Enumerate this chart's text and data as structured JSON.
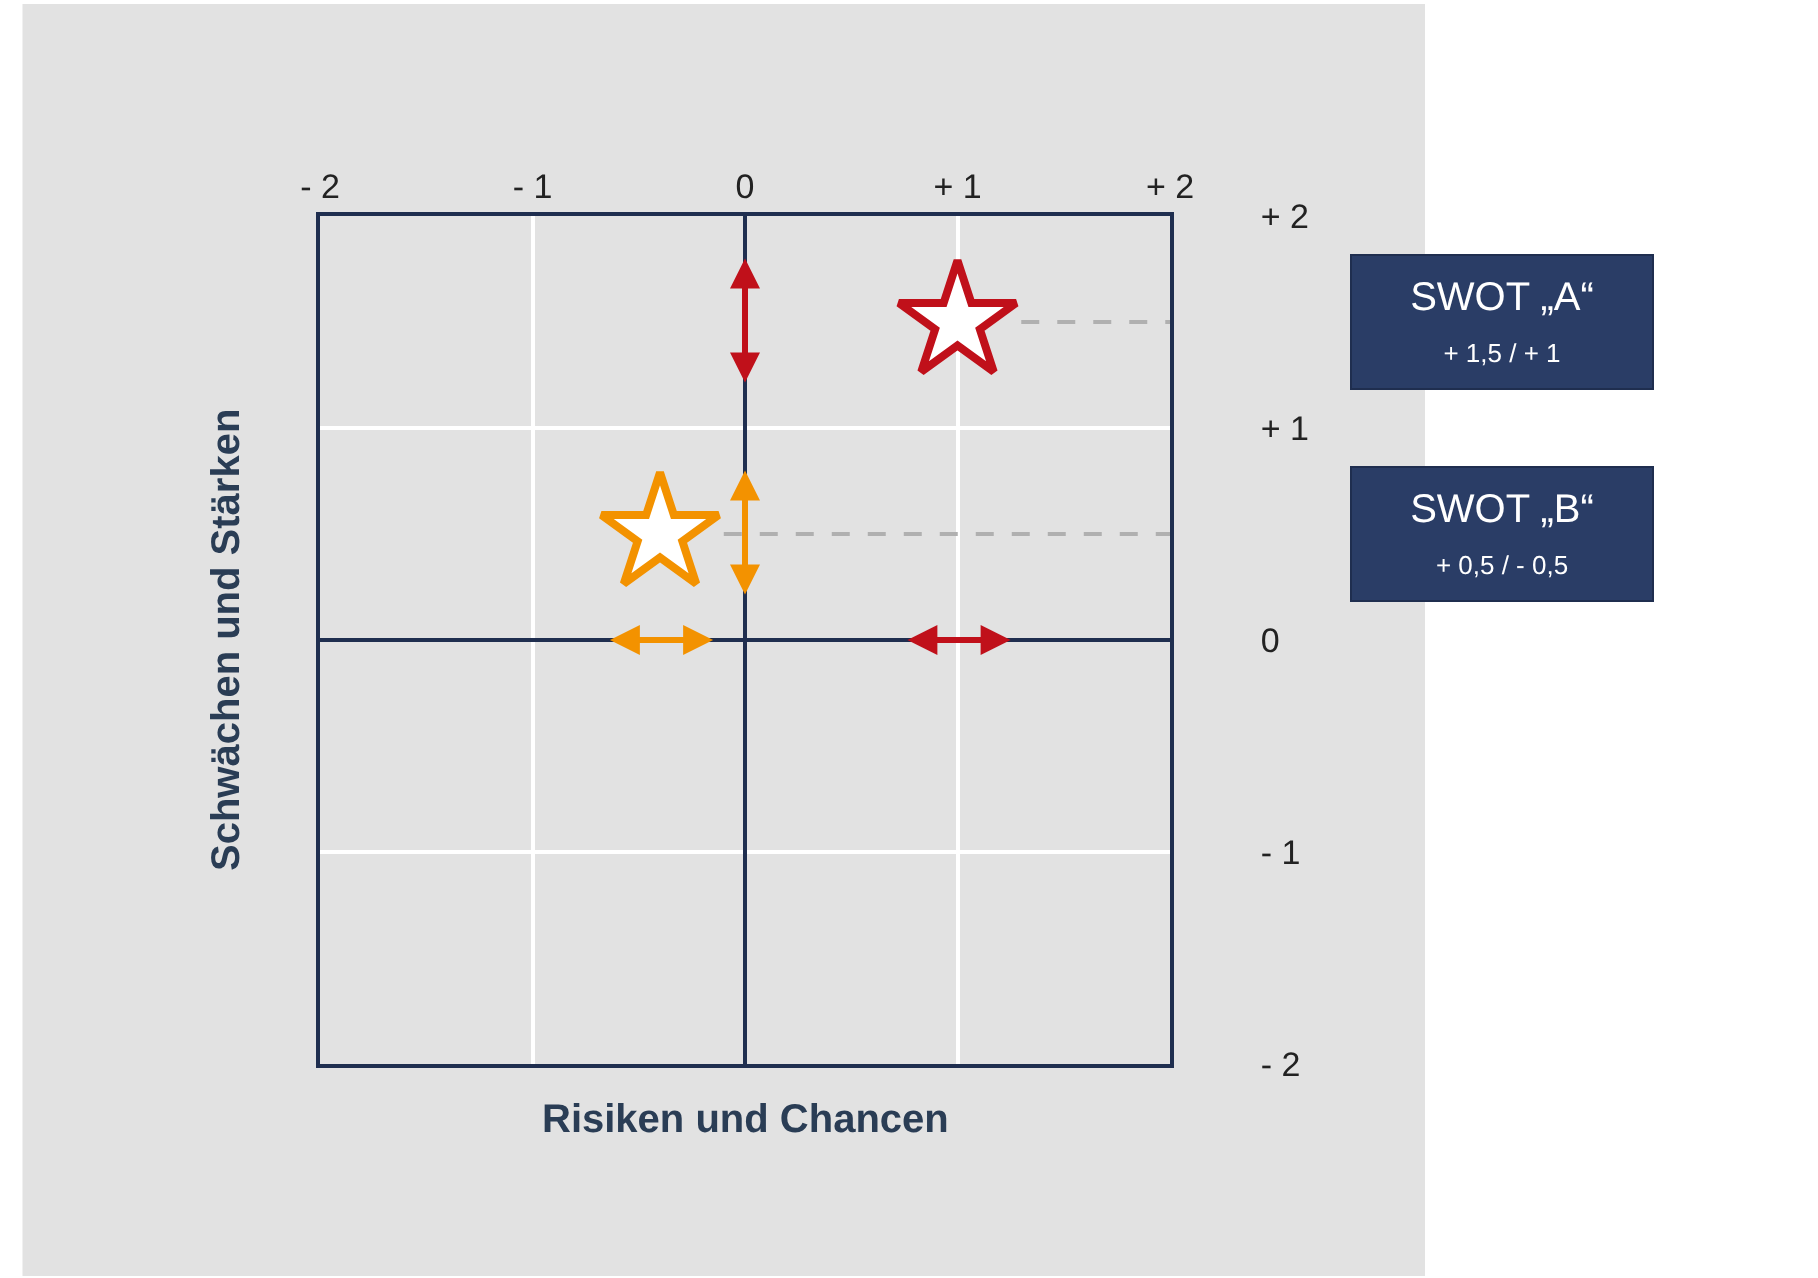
{
  "chart_data": {
    "type": "scatter",
    "xlabel": "Risiken und Chancen",
    "ylabel": "Schwächen und Stärken",
    "xlim": [
      -2,
      2
    ],
    "ylim": [
      -2,
      2
    ],
    "xticks": [
      {
        "value": -2,
        "label": "- 2"
      },
      {
        "value": -1,
        "label": "- 1"
      },
      0,
      {
        "value": 1,
        "label": "+ 1"
      },
      {
        "value": 2,
        "label": "+ 2"
      }
    ],
    "yticks": [
      {
        "value": -2,
        "label": "- 2"
      },
      {
        "value": -1,
        "label": "- 1"
      },
      0,
      {
        "value": 1,
        "label": "+ 1"
      },
      {
        "value": 2,
        "label": "+ 2"
      }
    ],
    "series": [
      {
        "color": "#c0101a",
        "x": [
          1
        ],
        "values": [
          1.5
        ]
      },
      {
        "color": "#f39200",
        "x": [
          -0.4
        ],
        "values": [
          0.5
        ]
      }
    ],
    "marker": "star",
    "grid": true,
    "ref_lines": [
      {
        "axis": "y",
        "value": 1.5,
        "color": "#b0b0b0",
        "line_style": "dashed"
      },
      {
        "axis": "y",
        "value": 0.5,
        "color": "#b0b0b0",
        "line_style": "dashed"
      }
    ],
    "annotations": [
      "SWOT „A“\n+ 1,5 / + 1",
      "SWOT „B“\n+ 0,5 / - 0,5"
    ]
  }
}
